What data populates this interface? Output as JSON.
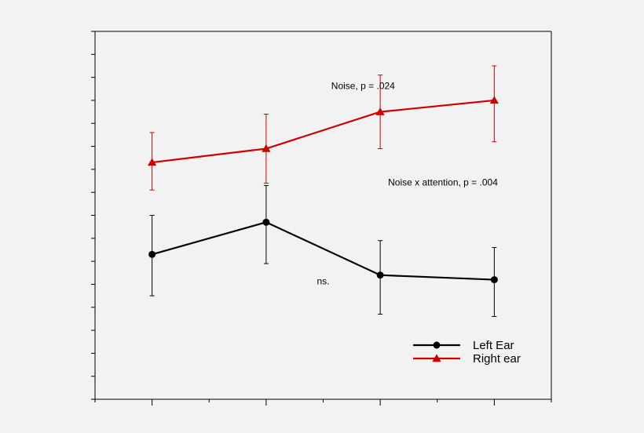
{
  "chart_data": {
    "type": "line",
    "x": [
      1,
      2,
      3,
      4
    ],
    "xlim": [
      0.5,
      4.5
    ],
    "ylim": [
      0,
      16
    ],
    "grid": false,
    "legend": "bottom-right",
    "title": "",
    "xlabel": "",
    "ylabel": "",
    "series": [
      {
        "name": "Left Ear",
        "color": "#000000",
        "marker": "circle",
        "values": [
          6.3,
          7.7,
          5.4,
          5.2
        ],
        "err_high": [
          8.0,
          9.3,
          6.9,
          6.6
        ],
        "err_low": [
          4.5,
          5.9,
          3.7,
          3.6
        ]
      },
      {
        "name": "Right ear",
        "color": "#cc0000",
        "marker": "triangle",
        "values": [
          10.3,
          10.9,
          12.5,
          13.0
        ],
        "err_high": [
          11.6,
          12.4,
          14.1,
          14.5
        ],
        "err_low": [
          9.1,
          9.4,
          10.9,
          11.2
        ]
      }
    ],
    "annotations": [
      {
        "text": "Noise, p = .024",
        "x": 2.85,
        "y": 13.5
      },
      {
        "text": "Noise x attention, p = .004",
        "x": 3.55,
        "y": 9.3
      },
      {
        "text": "ns.",
        "x": 2.5,
        "y": 5.0
      }
    ]
  }
}
